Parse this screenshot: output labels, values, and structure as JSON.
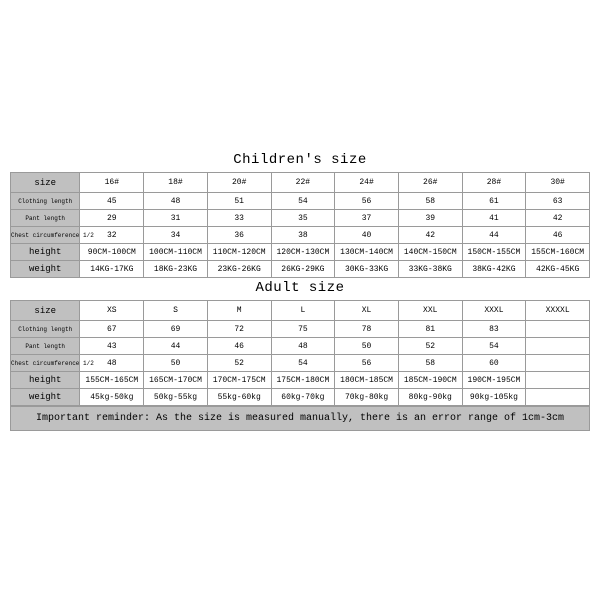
{
  "colors": {
    "header_bg": "#c0c0c0",
    "border": "#9a9a9a",
    "cell_bg": "#ffffff",
    "text": "#000000"
  },
  "font": {
    "family": "Courier New, monospace"
  },
  "children": {
    "title": "Children's size",
    "row_labels": [
      "size",
      "Clothing length",
      "Pant length",
      "Chest circumference 1/2",
      "height",
      "weight"
    ],
    "sizes": [
      "16#",
      "18#",
      "20#",
      "22#",
      "24#",
      "26#",
      "28#",
      "30#"
    ],
    "clothing": [
      "45",
      "48",
      "51",
      "54",
      "56",
      "58",
      "61",
      "63"
    ],
    "pant": [
      "29",
      "31",
      "33",
      "35",
      "37",
      "39",
      "41",
      "42"
    ],
    "chest": [
      "32",
      "34",
      "36",
      "38",
      "40",
      "42",
      "44",
      "46"
    ],
    "height": [
      "90CM-100CM",
      "100CM-110CM",
      "110CM-120CM",
      "120CM-130CM",
      "130CM-140CM",
      "140CM-150CM",
      "150CM-155CM",
      "155CM-160CM"
    ],
    "weight": [
      "14KG-17KG",
      "18KG-23KG",
      "23KG-26KG",
      "26KG-29KG",
      "30KG-33KG",
      "33KG-38KG",
      "38KG-42KG",
      "42KG-45KG"
    ]
  },
  "adult": {
    "title": "Adult size",
    "row_labels": [
      "size",
      "Clothing length",
      "Pant length",
      "Chest circumference 1/2",
      "height",
      "weight"
    ],
    "sizes": [
      "XS",
      "S",
      "M",
      "L",
      "XL",
      "XXL",
      "XXXL",
      "XXXXL"
    ],
    "clothing": [
      "67",
      "69",
      "72",
      "75",
      "78",
      "81",
      "83",
      ""
    ],
    "pant": [
      "43",
      "44",
      "46",
      "48",
      "50",
      "52",
      "54",
      ""
    ],
    "chest": [
      "48",
      "50",
      "52",
      "54",
      "56",
      "58",
      "60",
      ""
    ],
    "height": [
      "155CM-165CM",
      "165CM-170CM",
      "170CM-175CM",
      "175CM-180CM",
      "180CM-185CM",
      "185CM-190CM",
      "190CM-195CM",
      ""
    ],
    "weight": [
      "45kg-50kg",
      "50kg-55kg",
      "55kg-60kg",
      "60kg-70kg",
      "70kg-80kg",
      "80kg-90kg",
      "90kg-105kg",
      ""
    ]
  },
  "reminder": "Important reminder: As the size is measured manually, there is an error range of 1cm-3cm"
}
